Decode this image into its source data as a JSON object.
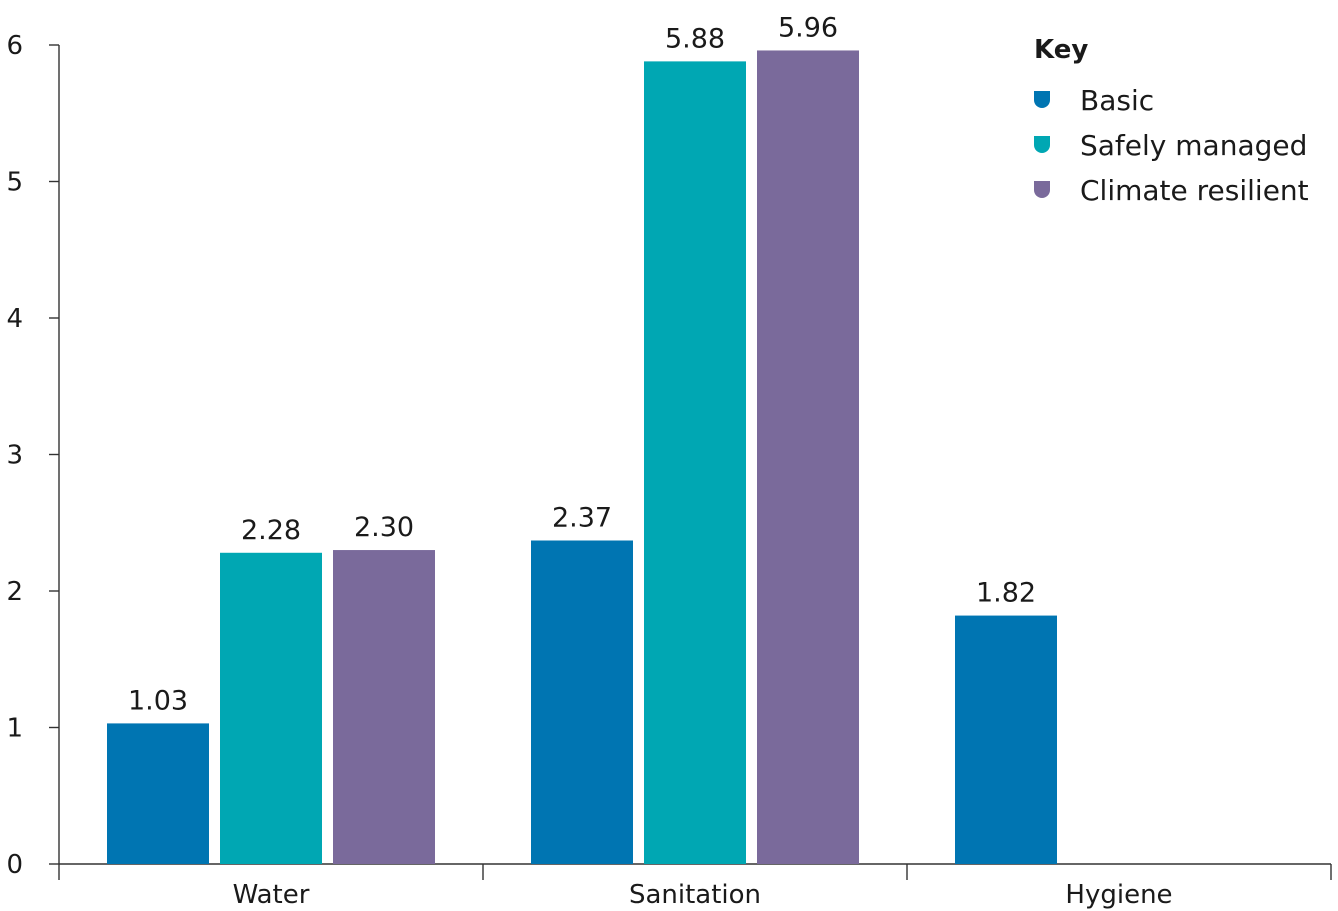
{
  "chart_data": {
    "type": "bar",
    "categories": [
      "Water",
      "Sanitation",
      "Hygiene"
    ],
    "series": [
      {
        "name": "Basic",
        "values": [
          1.03,
          2.37,
          1.82
        ],
        "labels": [
          "1.03",
          "2.37",
          "1.82"
        ]
      },
      {
        "name": "Safely managed",
        "values": [
          2.28,
          5.88,
          null
        ],
        "labels": [
          "2.28",
          "5.88",
          ""
        ]
      },
      {
        "name": "Climate resilient",
        "values": [
          2.3,
          5.96,
          null
        ],
        "labels": [
          "2.30",
          "5.96",
          ""
        ]
      }
    ],
    "ylim": [
      0,
      6
    ],
    "yticks": [
      "0",
      "1",
      "2",
      "3",
      "4",
      "5",
      "6"
    ],
    "legend": {
      "title": "Key",
      "position": "top-right"
    },
    "colors": {
      "Basic": "#0075B2",
      "Safely managed": "#00A7B3",
      "Climate resilient": "#7A6A9B"
    },
    "grid": false
  }
}
